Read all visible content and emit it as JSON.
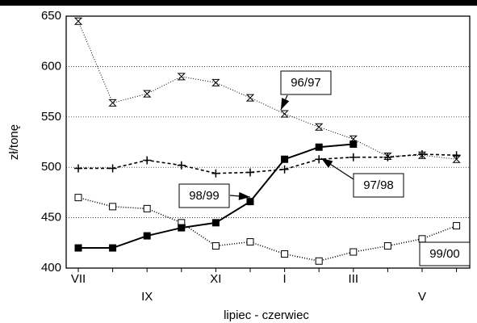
{
  "chart_data": {
    "type": "line",
    "y_label": "zł/tonę",
    "x_label": "lipiec - czerwiec",
    "categories": [
      "VII",
      null,
      "IX",
      null,
      "XI",
      null,
      "I",
      null,
      "III",
      null,
      "V",
      null
    ],
    "ylim": [
      400,
      650
    ],
    "yticks": [
      400,
      450,
      500,
      550,
      600,
      650
    ],
    "grid": true,
    "series": [
      {
        "name": "96/97",
        "color": "#000000",
        "dash": "1,2",
        "width": 1,
        "marker": "hourglass",
        "values": [
          645,
          564,
          573,
          590,
          584,
          569,
          553,
          540,
          528,
          511,
          512,
          508
        ]
      },
      {
        "name": "97/98",
        "color": "#000000",
        "dash": "4,3",
        "width": 1.6,
        "marker": "plus",
        "values": [
          499,
          499,
          507,
          502,
          494,
          495,
          498,
          508,
          510,
          510,
          513,
          512
        ]
      },
      {
        "name": "98/99",
        "color": "#000000",
        "dash": "1,2",
        "width": 1.6,
        "marker": "open-square",
        "values": [
          470,
          461,
          459,
          445,
          422,
          426,
          414,
          407,
          416,
          422,
          429,
          442
        ]
      },
      {
        "name": "99/00",
        "color": "#000000",
        "dash": "none",
        "width": 2,
        "marker": "filled-square",
        "values": [
          420,
          420,
          432,
          440,
          445,
          466,
          508,
          520,
          523,
          null,
          null,
          null
        ]
      }
    ]
  }
}
